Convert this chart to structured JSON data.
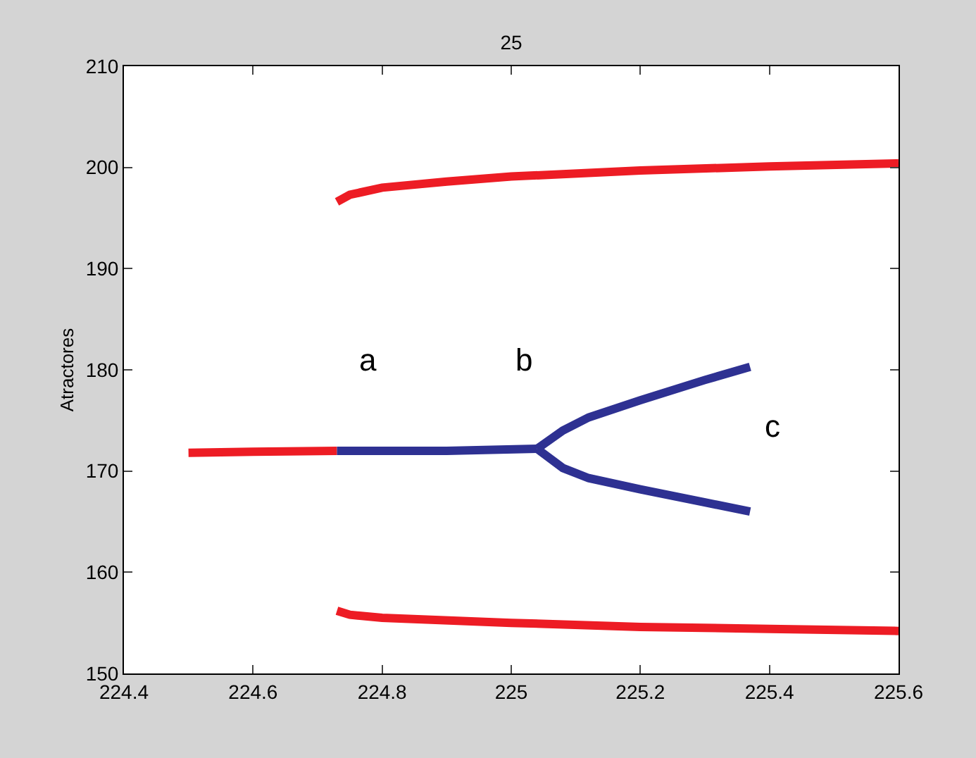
{
  "chart_data": {
    "type": "line",
    "title": "25",
    "ylabel": "Atractores",
    "xlim": [
      224.4,
      225.6
    ],
    "xticks": [
      224.4,
      224.6,
      224.8,
      225,
      225.2,
      225.4,
      225.6
    ],
    "ylim": [
      150,
      210
    ],
    "yticks": [
      150,
      160,
      170,
      180,
      190,
      200,
      210
    ],
    "grid": false,
    "marker": "none",
    "line_style": "solid",
    "series": [
      {
        "color": "#ed1c24",
        "x": [
          224.5,
          224.6,
          224.73
        ],
        "values": [
          171.8,
          171.9,
          172
        ]
      },
      {
        "color": "#ed1c24",
        "x": [
          224.73,
          224.75,
          224.8,
          224.9,
          225,
          225.2,
          225.4,
          225.6
        ],
        "values": [
          196.6,
          197.3,
          198,
          198.6,
          199.1,
          199.7,
          200.1,
          200.4
        ]
      },
      {
        "color": "#ed1c24",
        "x": [
          224.73,
          224.75,
          224.8,
          225,
          225.2,
          225.4,
          225.6
        ],
        "values": [
          156.2,
          155.8,
          155.5,
          155,
          154.6,
          154.4,
          154.2
        ]
      },
      {
        "color": "#2e3192",
        "x": [
          224.73,
          224.9,
          225.04
        ],
        "values": [
          172,
          172,
          172.2
        ]
      },
      {
        "color": "#2e3192",
        "x": [
          225.04,
          225.08,
          225.12,
          225.2,
          225.3,
          225.37
        ],
        "values": [
          172.2,
          174,
          175.3,
          177,
          179,
          180.3
        ]
      },
      {
        "color": "#2e3192",
        "x": [
          225.04,
          225.08,
          225.12,
          225.2,
          225.3,
          225.37
        ],
        "values": [
          172.2,
          170.3,
          169.3,
          168.2,
          166.9,
          166
        ]
      }
    ],
    "annotations": [
      "a",
      "b",
      "c"
    ]
  }
}
